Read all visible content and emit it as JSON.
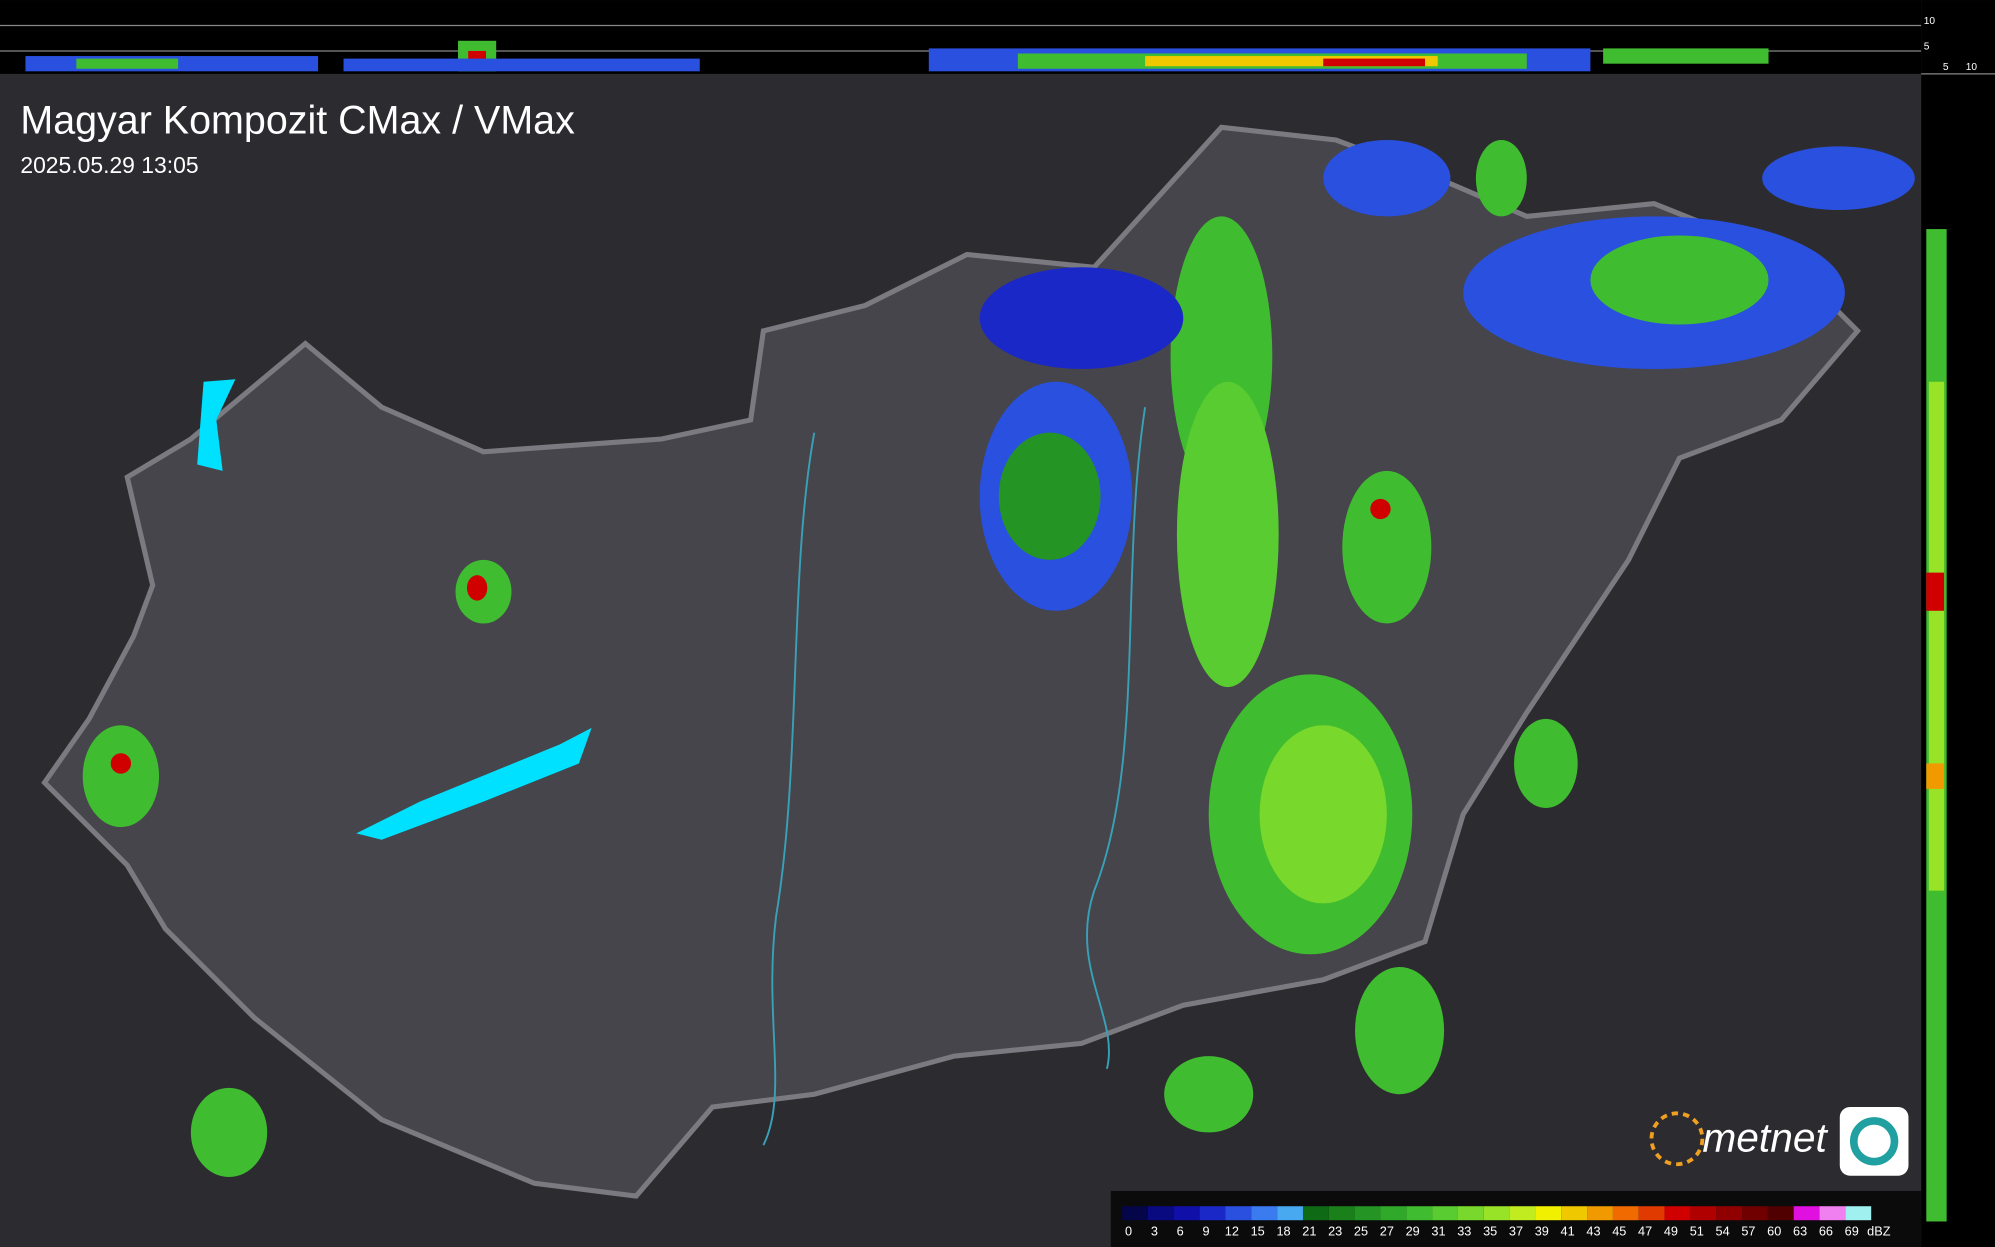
{
  "header": {
    "title": "Magyar Kompozit CMax / VMax",
    "timestamp": "2025.05.29 13:05"
  },
  "profile_scale": {
    "top": [
      "10",
      "5"
    ],
    "side": [
      "5",
      "10"
    ]
  },
  "logo": {
    "text": "metnet"
  },
  "legend": {
    "unit": "dBZ",
    "bins": [
      {
        "label": 0,
        "color": "#05054a"
      },
      {
        "label": 3,
        "color": "#0a0a80"
      },
      {
        "label": 6,
        "color": "#1010a8"
      },
      {
        "label": 9,
        "color": "#1a28c8"
      },
      {
        "label": 12,
        "color": "#2a50e0"
      },
      {
        "label": 15,
        "color": "#3a7cf0"
      },
      {
        "label": 18,
        "color": "#48a8f0"
      },
      {
        "label": 21,
        "color": "#0e6a14"
      },
      {
        "label": 23,
        "color": "#1a801a"
      },
      {
        "label": 25,
        "color": "#249424"
      },
      {
        "label": 27,
        "color": "#30a82a"
      },
      {
        "label": 29,
        "color": "#40bc30"
      },
      {
        "label": 31,
        "color": "#58cc30"
      },
      {
        "label": 33,
        "color": "#78d82c"
      },
      {
        "label": 35,
        "color": "#98e228"
      },
      {
        "label": 37,
        "color": "#c0ec20"
      },
      {
        "label": 39,
        "color": "#f0f000"
      },
      {
        "label": 41,
        "color": "#f0c800"
      },
      {
        "label": 43,
        "color": "#f09a00"
      },
      {
        "label": 45,
        "color": "#f06a00"
      },
      {
        "label": 47,
        "color": "#e03a00"
      },
      {
        "label": 49,
        "color": "#d00000"
      },
      {
        "label": 51,
        "color": "#b00000"
      },
      {
        "label": 54,
        "color": "#900000"
      },
      {
        "label": 57,
        "color": "#700000"
      },
      {
        "label": 60,
        "color": "#500000"
      },
      {
        "label": 63,
        "color": "#e010e0"
      },
      {
        "label": 66,
        "color": "#f080f0"
      },
      {
        "label": 69,
        "color": "#a0f0f0"
      }
    ]
  }
}
